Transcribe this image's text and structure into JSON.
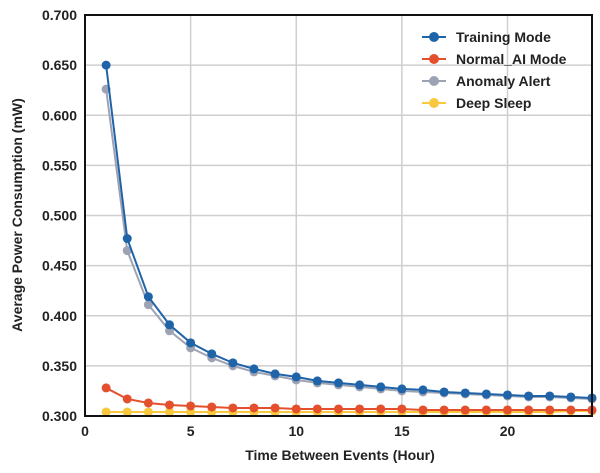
{
  "chart_data": {
    "type": "line",
    "title": "",
    "xlabel": "Time Between Events (Hour)",
    "ylabel": "Average Power Consumption (mW)",
    "xlim": [
      0,
      24
    ],
    "ylim": [
      0.3,
      0.7
    ],
    "xticks": [
      0,
      5,
      10,
      15,
      20
    ],
    "yticks": [
      0.3,
      0.35,
      0.4,
      0.45,
      0.5,
      0.55,
      0.6,
      0.65,
      0.7
    ],
    "ytick_labels": [
      "0.300",
      "0.350",
      "0.400",
      "0.450",
      "0.500",
      "0.550",
      "0.600",
      "0.650",
      "0.700"
    ],
    "grid": true,
    "legend_position": "top-right",
    "x": [
      1,
      2,
      3,
      4,
      5,
      6,
      7,
      8,
      9,
      10,
      11,
      12,
      13,
      14,
      15,
      16,
      17,
      18,
      19,
      20,
      21,
      22,
      23,
      24
    ],
    "series": [
      {
        "name": "Training Mode",
        "color": "#1f63a8",
        "values": [
          0.65,
          0.477,
          0.419,
          0.391,
          0.373,
          0.362,
          0.353,
          0.347,
          0.342,
          0.339,
          0.335,
          0.333,
          0.331,
          0.329,
          0.327,
          0.326,
          0.324,
          0.323,
          0.322,
          0.321,
          0.32,
          0.32,
          0.319,
          0.318
        ]
      },
      {
        "name": "Normal_AI Mode",
        "color": "#e4502d",
        "values": [
          0.328,
          0.317,
          0.313,
          0.311,
          0.31,
          0.309,
          0.308,
          0.308,
          0.308,
          0.307,
          0.307,
          0.307,
          0.307,
          0.307,
          0.307,
          0.306,
          0.306,
          0.306,
          0.306,
          0.306,
          0.306,
          0.306,
          0.306,
          0.306
        ]
      },
      {
        "name": "Anomaly Alert",
        "color": "#9ea3b3",
        "values": [
          0.626,
          0.465,
          0.411,
          0.385,
          0.368,
          0.358,
          0.35,
          0.344,
          0.34,
          0.336,
          0.333,
          0.331,
          0.329,
          0.327,
          0.325,
          0.324,
          0.323,
          0.322,
          0.321,
          0.32,
          0.319,
          0.319,
          0.318,
          0.317
        ]
      },
      {
        "name": "Deep Sleep",
        "color": "#f8c93e",
        "values": [
          0.304,
          0.304,
          0.304,
          0.304,
          0.304,
          0.304,
          0.304,
          0.304,
          0.304,
          0.304,
          0.304,
          0.304,
          0.304,
          0.304,
          0.304,
          0.304,
          0.304,
          0.304,
          0.304,
          0.304,
          0.304,
          0.304,
          0.305,
          0.305
        ]
      }
    ]
  }
}
